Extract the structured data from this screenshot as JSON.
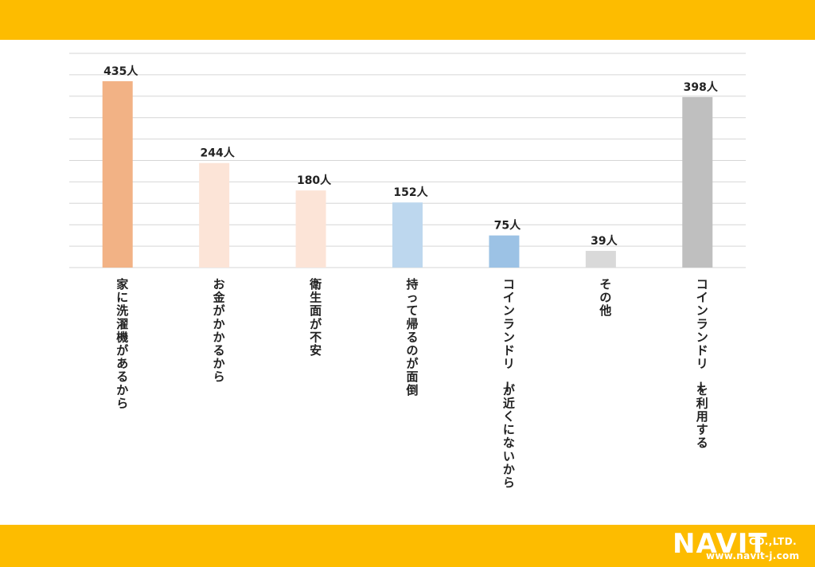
{
  "colors": {
    "band": "#fdbc00",
    "grid": "#d6d6d6",
    "bar_colors": [
      "#f2b285",
      "#fce4d7",
      "#fce4d7",
      "#bdd7ee",
      "#9cc2e5",
      "#d9d9d9",
      "#bfbfbf"
    ]
  },
  "chart_data": {
    "type": "bar",
    "categories": [
      "家に洗濯機があるから",
      "お金がかかるから",
      "衛生面が不安",
      "持って帰るのが面倒",
      "コインランドリーが近くにないから",
      "その他",
      "コインランドリーを利用する"
    ],
    "values": [
      435,
      244,
      180,
      152,
      75,
      39,
      398
    ],
    "data_labels": [
      "435人",
      "244人",
      "180人",
      "152人",
      "75人",
      "39人",
      "398人"
    ],
    "unit": "人",
    "ylim": [
      0,
      500
    ],
    "grid": true,
    "legend": "none",
    "label_orientation": "vertical"
  },
  "logo": {
    "brand": "NAVIT",
    "suffix": "CO.,LTD.",
    "url": "www.navit-j.com"
  }
}
